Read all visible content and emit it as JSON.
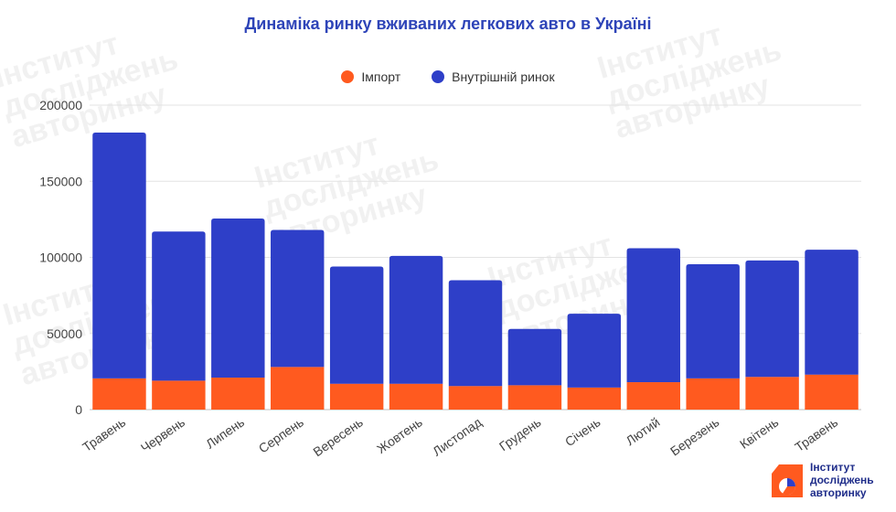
{
  "watermark": {
    "line1": "Інститут",
    "line2": "досліджень",
    "line3": "авторинку"
  },
  "logo": {
    "line1": "Інститут",
    "line2": "досліджень",
    "line3": "авторинку"
  },
  "chart_data": {
    "type": "bar",
    "stacked": true,
    "title": "Динаміка ринку вживаних легкових авто в Україні",
    "categories": [
      "Травень",
      "Червень",
      "Липень",
      "Серпень",
      "Вересень",
      "Жовтень",
      "Листопад",
      "Грудень",
      "Січень",
      "Лютий",
      "Березень",
      "Квітень",
      "Травень"
    ],
    "series": [
      {
        "name": "Імпорт",
        "color": "#ff5a1f",
        "values": [
          20500,
          19000,
          21000,
          28000,
          17000,
          17000,
          15500,
          16000,
          14500,
          18000,
          20500,
          21500,
          23000
        ]
      },
      {
        "name": "Внутрішній ринок",
        "color": "#2e3fc8",
        "values": [
          161500,
          98000,
          104500,
          90000,
          77000,
          84000,
          69500,
          37000,
          48500,
          88000,
          75000,
          76500,
          82000
        ]
      }
    ],
    "ylim": [
      0,
      200000
    ],
    "yticks": [
      0,
      50000,
      100000,
      150000,
      200000
    ],
    "grid": true,
    "legend_position": "top-center",
    "xlabel": "",
    "ylabel": ""
  }
}
